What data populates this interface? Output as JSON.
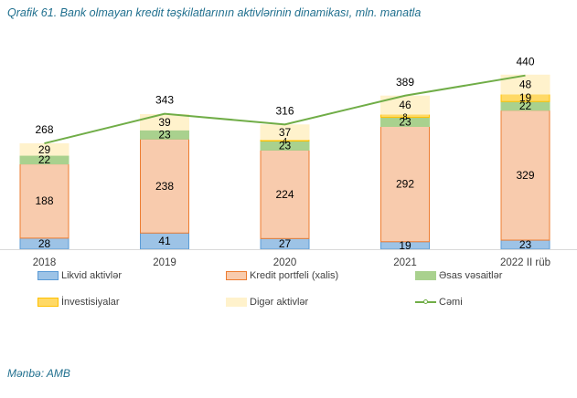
{
  "title": "Qrafik 61. Bank olmayan kredit təşkilatlarının aktivlərinin dinamikası, mln. manatla",
  "source": "Mənbə: AMB",
  "chart_data": {
    "type": "bar",
    "stacked": true,
    "categories": [
      "2018",
      "2019",
      "2020",
      "2021",
      "2022 II rüb"
    ],
    "series": [
      {
        "name": "Likvid aktivlər",
        "type": "bar",
        "color": "#9dc3e6",
        "border": "#5b9bd5",
        "values": [
          28,
          41,
          27,
          19,
          23
        ]
      },
      {
        "name": "Kredit portfeli (xalis)",
        "type": "bar",
        "color": "#f8cbad",
        "border": "#ed7d31",
        "values": [
          188,
          238,
          224,
          292,
          329
        ]
      },
      {
        "name": "Əsas vəsaitlər",
        "type": "bar",
        "color": "#a9d18e",
        "border": "#a9d18e",
        "values": [
          22,
          23,
          23,
          23,
          22
        ]
      },
      {
        "name": "İnvestisiyalar",
        "type": "bar",
        "color": "#ffd966",
        "border": "#ffc000",
        "values": [
          0,
          0,
          4,
          8,
          19
        ]
      },
      {
        "name": "Digər aktivlər",
        "type": "bar",
        "color": "#fff2cc",
        "border": "#fff2cc",
        "values": [
          29,
          39,
          37,
          46,
          48
        ]
      },
      {
        "name": "Cəmi",
        "type": "line",
        "color": "#70ad47",
        "values": [
          268,
          343,
          316,
          389,
          440
        ]
      }
    ],
    "data_labels": [
      [
        "28",
        "188",
        "22",
        "",
        "29"
      ],
      [
        "41",
        "238",
        "23",
        "",
        "39"
      ],
      [
        "27",
        "224",
        "23",
        "4",
        "37"
      ],
      [
        "19",
        "292",
        "23",
        "8",
        "46"
      ],
      [
        "23",
        "329",
        "22",
        "19",
        "48"
      ]
    ],
    "ylim": [
      0,
      460
    ],
    "grid": false,
    "legend_position": "bottom"
  }
}
